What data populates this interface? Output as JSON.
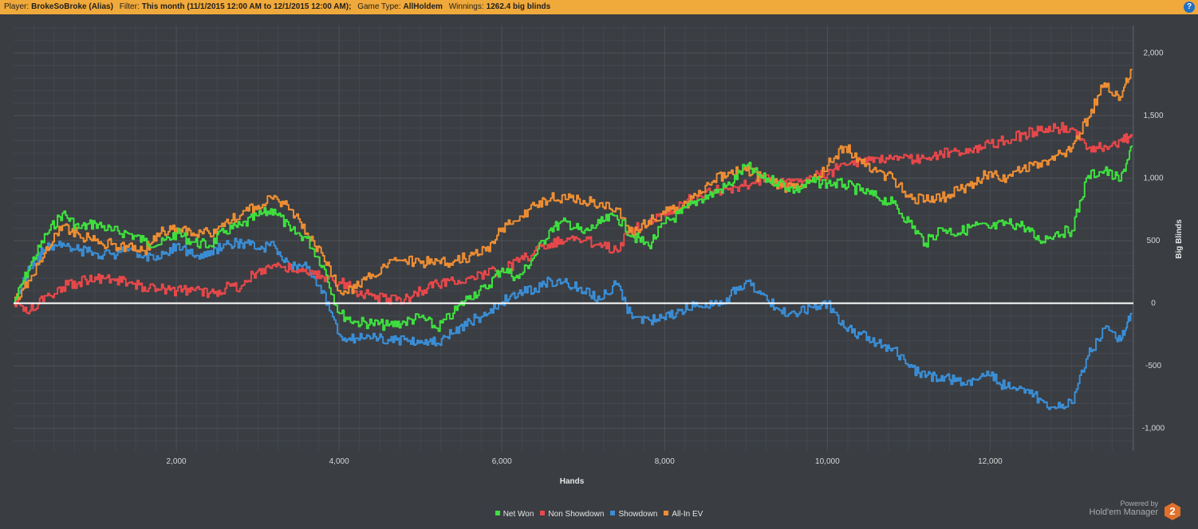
{
  "header": {
    "player_label": "Player:",
    "player_value": "BrokeSoBroke (Alias)",
    "filter_label": "Filter:",
    "filter_value": "This month (11/1/2015 12:00 AM to 12/1/2015 12:00 AM);",
    "gametype_label": "Game Type:",
    "gametype_value": "AllHoldem",
    "winnings_label": "Winnings:",
    "winnings_value": "1262.4 big blinds",
    "help_glyph": "?"
  },
  "powered": {
    "line1": "Powered by",
    "line2": "Hold'em Manager",
    "logo_text": "2"
  },
  "colors": {
    "background": "#3a3d42",
    "header": "#f0a93b",
    "grid": "#4d5056",
    "zero_line": "#ffffff",
    "net_won": "#3ee03e",
    "non_showdown": "#e8484a",
    "showdown": "#3a8ed6",
    "allin_ev": "#ee8e33"
  },
  "chart_data": {
    "type": "line",
    "xlabel": "Hands",
    "ylabel": "Big Blinds",
    "xlim": [
      0,
      13760
    ],
    "ylim": [
      -1180,
      2220
    ],
    "x_ticks": [
      {
        "value": 2000,
        "label": "2,000"
      },
      {
        "value": 4000,
        "label": "4,000"
      },
      {
        "value": 6000,
        "label": "6,000"
      },
      {
        "value": 8000,
        "label": "8,000"
      },
      {
        "value": 10000,
        "label": "10,000"
      },
      {
        "value": 12000,
        "label": "12,000"
      }
    ],
    "y_ticks": [
      {
        "value": 2000,
        "label": "2,000"
      },
      {
        "value": 1500,
        "label": "1,500"
      },
      {
        "value": 1000,
        "label": "1,000"
      },
      {
        "value": 500,
        "label": "500"
      },
      {
        "value": 0,
        "label": "0"
      },
      {
        "value": -500,
        "label": "-500"
      },
      {
        "value": -1000,
        "label": "-1,000"
      }
    ],
    "grid": true,
    "legend_position": "bottom",
    "x": [
      0,
      200,
      400,
      600,
      800,
      1000,
      1200,
      1400,
      1600,
      1800,
      2000,
      2200,
      2400,
      2600,
      2800,
      3000,
      3200,
      3400,
      3600,
      3800,
      4000,
      4200,
      4400,
      4600,
      4800,
      5000,
      5200,
      5400,
      5600,
      5800,
      6000,
      6200,
      6400,
      6600,
      6800,
      7000,
      7200,
      7400,
      7600,
      7800,
      8000,
      8200,
      8400,
      8600,
      8800,
      9000,
      9200,
      9400,
      9600,
      9800,
      10000,
      10200,
      10400,
      10600,
      10800,
      11000,
      11200,
      11400,
      11600,
      11800,
      12000,
      12200,
      12400,
      12600,
      12800,
      13000,
      13200,
      13400,
      13600,
      13740
    ],
    "series": [
      {
        "name": "Net Won",
        "color": "#3ee03e",
        "values": [
          0,
          300,
          550,
          720,
          600,
          640,
          580,
          560,
          500,
          470,
          560,
          490,
          460,
          580,
          620,
          700,
          750,
          580,
          520,
          300,
          -80,
          -150,
          -160,
          -180,
          -150,
          -110,
          -200,
          -80,
          60,
          120,
          280,
          200,
          380,
          600,
          650,
          560,
          640,
          700,
          540,
          460,
          640,
          720,
          820,
          880,
          950,
          1100,
          1000,
          970,
          900,
          970,
          960,
          950,
          900,
          850,
          800,
          650,
          480,
          600,
          560,
          620,
          600,
          640,
          620,
          500,
          560,
          580,
          1020,
          1060,
          980,
          1260
        ]
      },
      {
        "name": "Non Showdown",
        "color": "#e8484a",
        "values": [
          0,
          -60,
          60,
          130,
          170,
          210,
          190,
          160,
          130,
          110,
          100,
          110,
          80,
          120,
          140,
          260,
          310,
          270,
          240,
          210,
          170,
          100,
          60,
          40,
          30,
          100,
          160,
          180,
          200,
          230,
          270,
          330,
          420,
          480,
          520,
          500,
          480,
          430,
          600,
          650,
          700,
          800,
          850,
          900,
          920,
          940,
          1000,
          950,
          990,
          1010,
          1030,
          1120,
          1140,
          1160,
          1150,
          1160,
          1160,
          1190,
          1220,
          1240,
          1280,
          1300,
          1350,
          1380,
          1400,
          1400,
          1240,
          1260,
          1300,
          1330
        ]
      },
      {
        "name": "Showdown",
        "color": "#3a8ed6",
        "values": [
          0,
          280,
          450,
          480,
          420,
          400,
          390,
          420,
          380,
          360,
          470,
          380,
          380,
          470,
          480,
          440,
          460,
          310,
          280,
          100,
          -250,
          -280,
          -280,
          -290,
          -290,
          -300,
          -320,
          -240,
          -140,
          -100,
          10,
          80,
          120,
          180,
          160,
          90,
          30,
          150,
          -120,
          -130,
          -130,
          -50,
          -20,
          -10,
          60,
          180,
          80,
          -50,
          -80,
          -30,
          0,
          -190,
          -250,
          -320,
          -360,
          -510,
          -590,
          -580,
          -620,
          -610,
          -580,
          -670,
          -680,
          -760,
          -840,
          -800,
          -420,
          -200,
          -300,
          -80
        ]
      },
      {
        "name": "All-In EV",
        "color": "#ee8e33",
        "values": [
          0,
          180,
          450,
          620,
          550,
          500,
          470,
          450,
          420,
          560,
          600,
          560,
          560,
          650,
          710,
          780,
          860,
          750,
          560,
          380,
          100,
          120,
          230,
          320,
          350,
          320,
          340,
          330,
          380,
          420,
          600,
          660,
          780,
          840,
          830,
          820,
          800,
          760,
          550,
          660,
          720,
          760,
          860,
          980,
          1040,
          1060,
          1000,
          940,
          920,
          980,
          1100,
          1250,
          1150,
          1050,
          1000,
          850,
          820,
          840,
          900,
          960,
          1050,
          1000,
          1080,
          1120,
          1180,
          1240,
          1480,
          1760,
          1650,
          1870
        ]
      }
    ]
  }
}
